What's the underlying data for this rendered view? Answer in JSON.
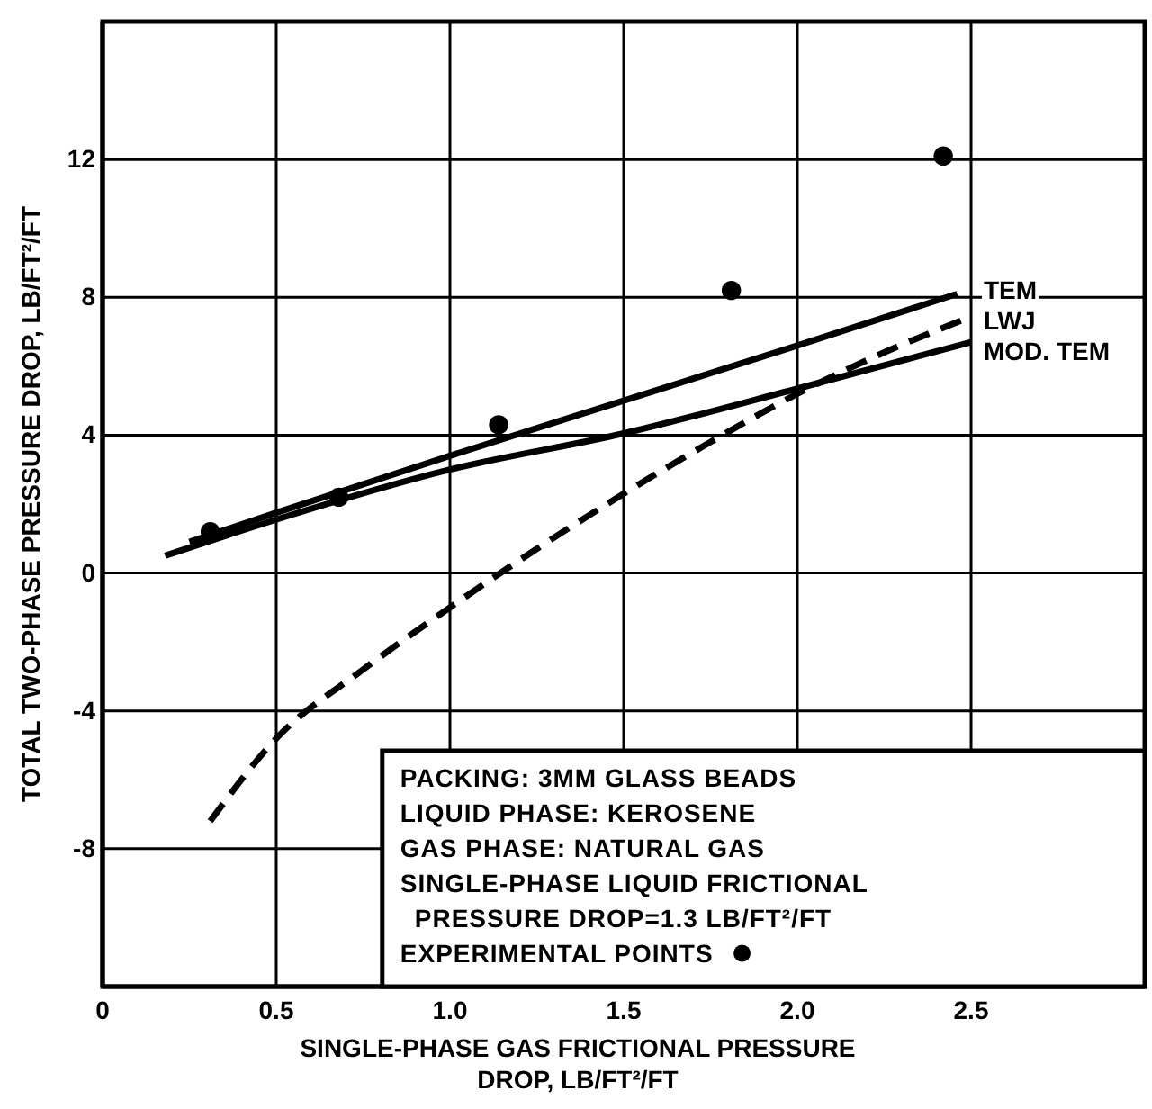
{
  "chart_data": {
    "type": "line",
    "xlabel": "SINGLE-PHASE GAS FRICTIONAL PRESSURE DROP, LB/FT²/FT",
    "ylabel": "TOTAL TWO-PHASE PRESSURE DROP, LB/FT²/FT",
    "xlim": [
      0,
      3
    ],
    "ylim": [
      -12,
      16
    ],
    "xticks": [
      0,
      0.5,
      {
        "value": 1,
        "label": "1.0"
      },
      1.5,
      {
        "value": 2,
        "label": "2.0"
      },
      2.5
    ],
    "yticks": [
      -8,
      -4,
      0,
      4,
      8,
      12
    ],
    "grid": true,
    "legend": "bottom right",
    "annotations": [
      "PACKING: 3MM GLASS BEADS",
      "LIQUID PHASE: KEROSENE",
      "GAS PHASE: NATURAL GAS",
      "SINGLE-PHASE LIQUID FRICTIONAL",
      "PRESSURE DROP=1.3 LB/FT²/FT"
    ],
    "series": [
      {
        "name": "TEM",
        "line_style": "solid",
        "color": "#000000",
        "x": [
          0.25,
          0.5,
          1.0,
          1.5,
          2.0,
          2.46
        ],
        "values": [
          0.9,
          1.75,
          3.4,
          5.0,
          6.6,
          8.1
        ]
      },
      {
        "name": "LWJ",
        "line_style": "dashed",
        "color": "#000000",
        "x": [
          0.31,
          0.5,
          0.75,
          1.0,
          1.25,
          1.5,
          1.75,
          2.0,
          2.25,
          2.49
        ],
        "values": [
          -7.2,
          -4.8,
          -2.8,
          -1.0,
          0.7,
          2.3,
          3.8,
          5.2,
          6.4,
          7.4
        ]
      },
      {
        "name": "MOD. TEM",
        "line_style": "solid",
        "color": "#000000",
        "x": [
          0.18,
          0.5,
          1.0,
          1.5,
          2.0,
          2.5
        ],
        "values": [
          0.5,
          1.55,
          3.0,
          4.05,
          5.35,
          6.7
        ]
      },
      {
        "name": "EXPERIMENTAL POINTS",
        "type": "scatter",
        "marker": "circle",
        "color": "#000000",
        "x": [
          0.31,
          0.68,
          1.14,
          1.81,
          2.42
        ],
        "values": [
          1.2,
          2.2,
          4.3,
          8.2,
          12.1
        ]
      }
    ]
  }
}
